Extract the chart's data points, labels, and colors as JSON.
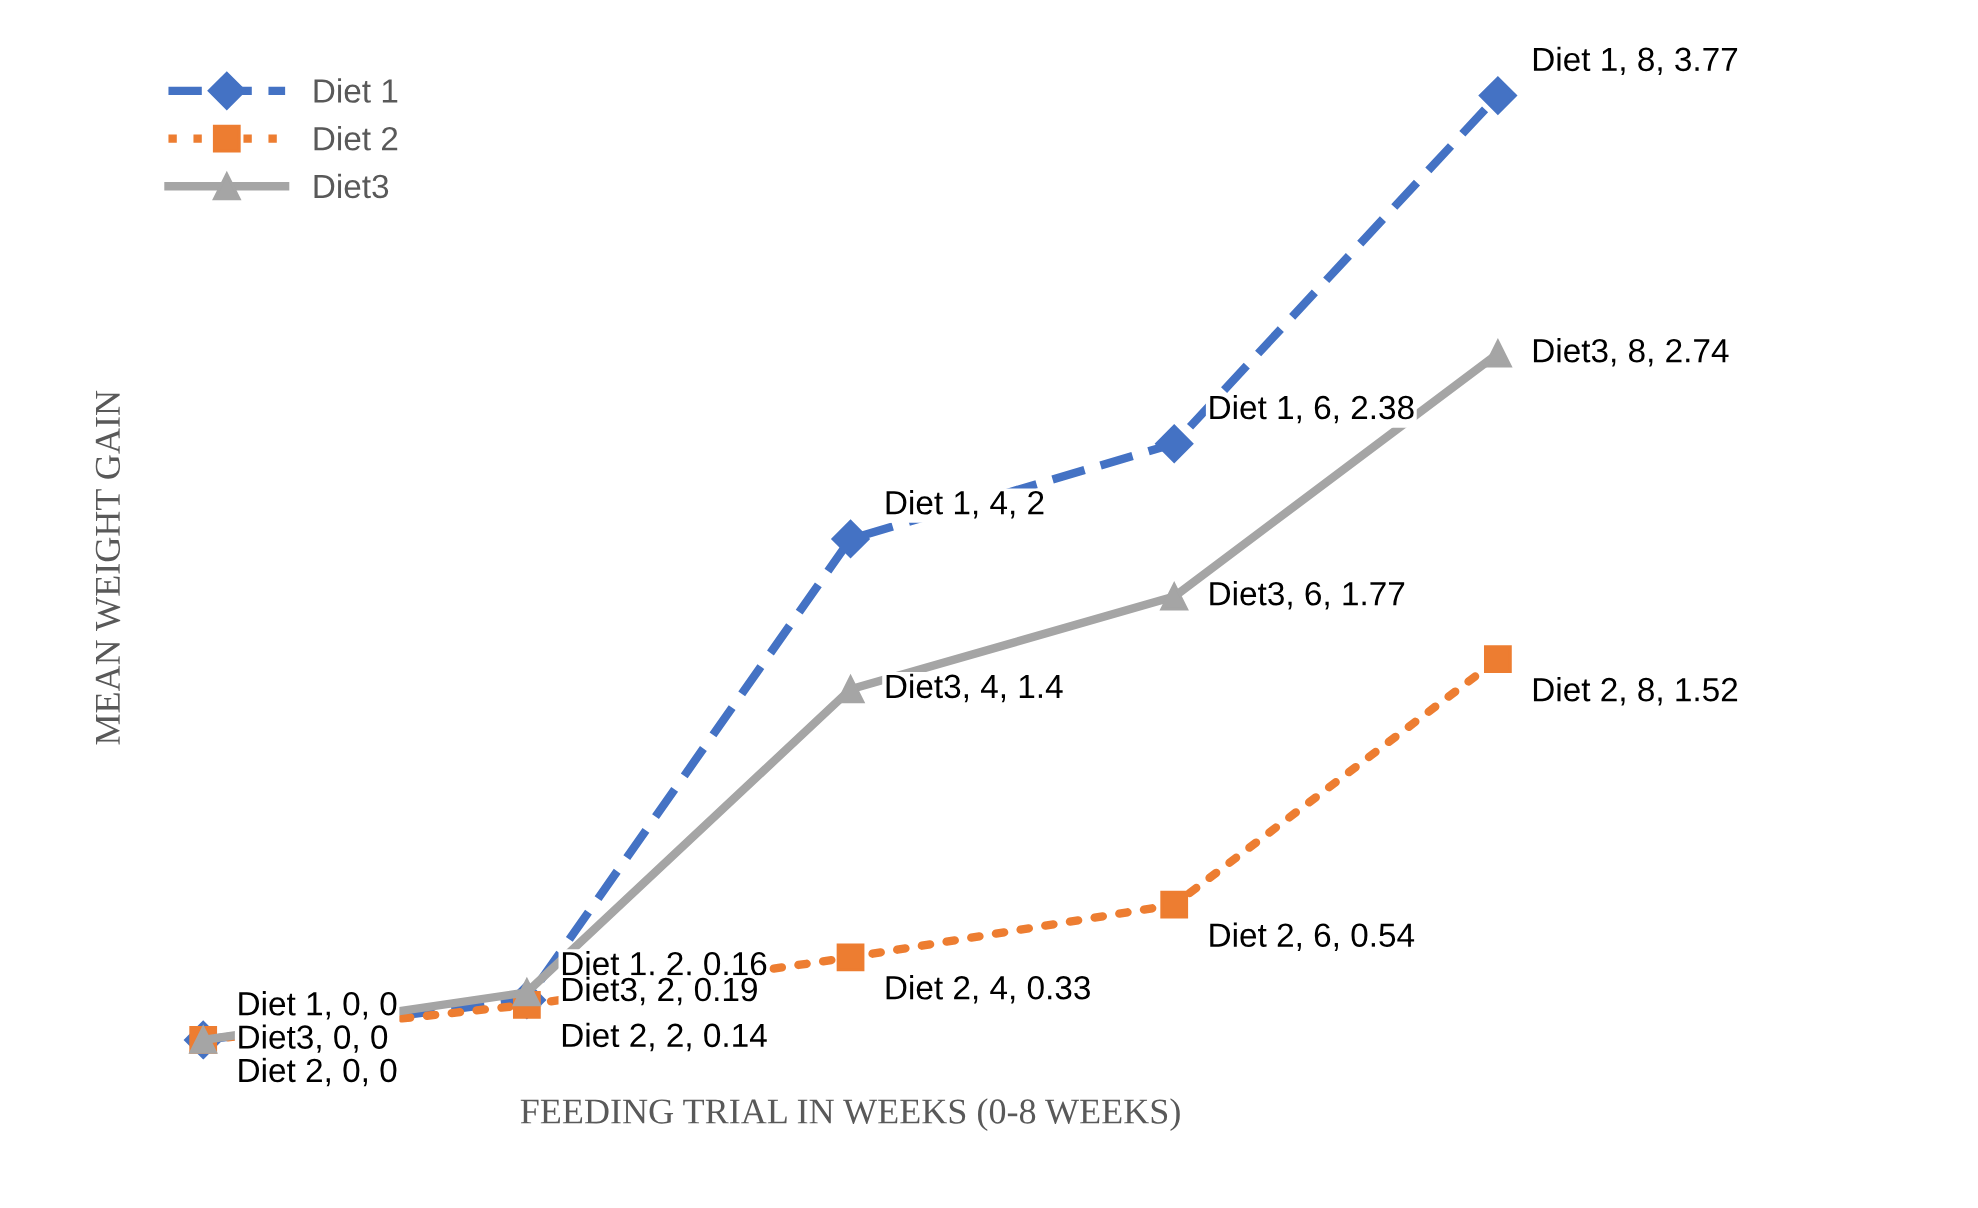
{
  "chart_data": {
    "type": "line",
    "xlabel": "FEEDING TRIAL IN WEEKS (0-8 WEEKS)",
    "ylabel": "MEAN WEIGHT GAIN",
    "categories": [
      null,
      null,
      null,
      null,
      null
    ],
    "legend": "top left",
    "data_labels": true,
    "series": [
      {
        "name": "Diet 1",
        "color": "#4472c4",
        "marker": "diamond",
        "line_style": "dashed",
        "values": [
          0,
          0.16,
          2,
          2.38,
          3.77
        ],
        "value_labels": [
          "Diet 1, 0, 0",
          "Diet 1, 2, 0.16",
          "Diet 1, 4, 2",
          "Diet 1, 6, 2.38",
          "Diet 1, 8, 3.77"
        ]
      },
      {
        "name": "Diet 2",
        "color": "#ed7d31",
        "marker": "square",
        "line_style": "dotted",
        "values": [
          0,
          0.14,
          0.33,
          0.54,
          1.52
        ],
        "value_labels": [
          "Diet 2, 0, 0",
          "Diet 2, 2, 0.14",
          "Diet 2, 4, 0.33",
          "Diet 2, 6, 0.54",
          "Diet 2, 8, 1.52"
        ]
      },
      {
        "name": "Diet3",
        "color": "#a5a5a5",
        "marker": "triangle",
        "line_style": "solid",
        "values": [
          0,
          0.19,
          1.4,
          1.77,
          2.74
        ],
        "value_labels": [
          "Diet3, 0, 0",
          "Diet3, 2, 0.19",
          "Diet3, 4, 1.4",
          "Diet3, 6, 1.77",
          "Diet3, 8, 2.74"
        ]
      }
    ]
  }
}
